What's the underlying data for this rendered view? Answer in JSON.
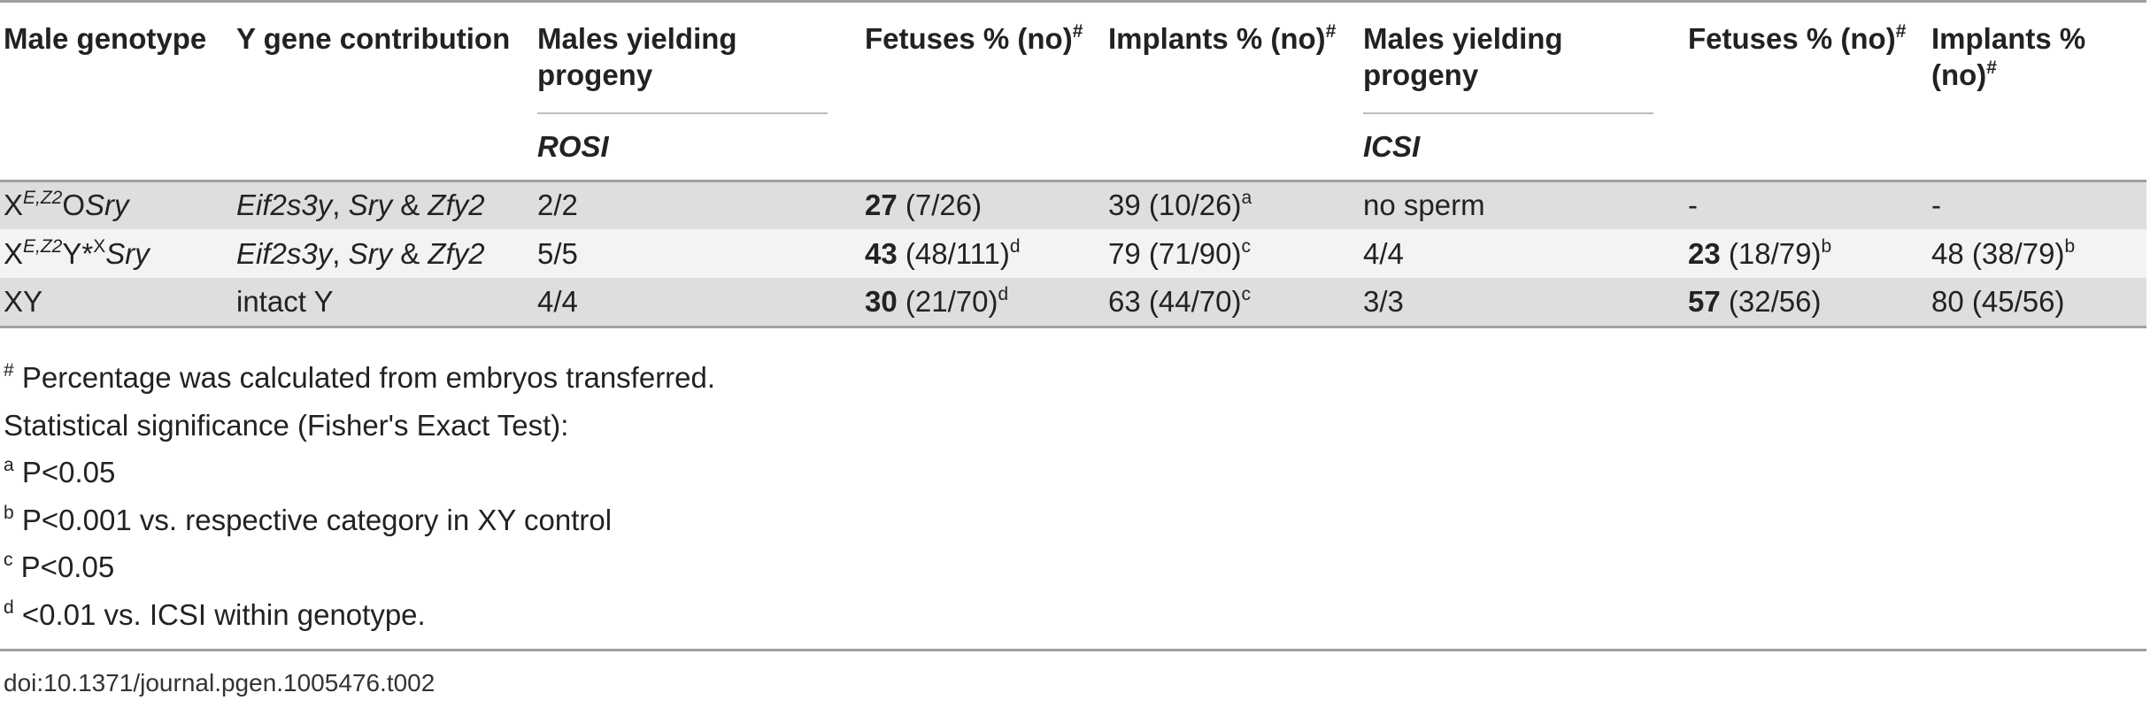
{
  "headers": {
    "male_genotype": "Male genotype",
    "y_gene_contribution": "Y gene contribution",
    "rosi_males_yielding_progeny": "Males yielding progeny",
    "rosi_fetuses": "Fetuses % (no)",
    "rosi_fetuses_mark": "#",
    "rosi_implants": "Implants % (no)",
    "rosi_implants_mark": "#",
    "icsi_males_yielding_progeny": "Males yielding progeny",
    "icsi_fetuses": "Fetuses % (no)",
    "icsi_fetuses_mark": "#",
    "icsi_implants": "Implants % (no)",
    "icsi_implants_mark": "#",
    "method_rosi": "ROSI",
    "method_icsi": "ICSI"
  },
  "rows": [
    {
      "genotype": {
        "base": "X",
        "sup": "E,Z2",
        "middle": "O",
        "trail": "Sry"
      },
      "y_genes": {
        "gene1": "Eif2s3y",
        "sep1": ", ",
        "gene2": "Sry",
        "sep2": " & ",
        "gene3": "Zfy2"
      },
      "rosi_males": "2/2",
      "rosi_fetuses_pct": "27",
      "rosi_fetuses_no": "(7/26)",
      "rosi_fetuses_mark": "",
      "rosi_implants": "39 (10/26)",
      "rosi_implants_mark": "a",
      "icsi_males": "no sperm",
      "icsi_fetuses_pct": "",
      "icsi_fetuses_no": "-",
      "icsi_fetuses_mark": "",
      "icsi_implants": "-",
      "icsi_implants_mark": ""
    },
    {
      "genotype": {
        "base": "X",
        "sup": "E,Z2",
        "middle": "Y*",
        "sup2": "X",
        "trail": "Sry"
      },
      "y_genes": {
        "gene1": "Eif2s3y",
        "sep1": ", ",
        "gene2": "Sry",
        "sep2": " & ",
        "gene3": "Zfy2"
      },
      "rosi_males": "5/5",
      "rosi_fetuses_pct": "43",
      "rosi_fetuses_no": "(48/111)",
      "rosi_fetuses_mark": "d",
      "rosi_implants": "79 (71/90)",
      "rosi_implants_mark": "c",
      "icsi_males": "4/4",
      "icsi_fetuses_pct": "23",
      "icsi_fetuses_no": "(18/79)",
      "icsi_fetuses_mark": "b",
      "icsi_implants": "48 (38/79)",
      "icsi_implants_mark": "b"
    },
    {
      "genotype": {
        "base": "XY"
      },
      "y_genes": {
        "text": "intact Y"
      },
      "rosi_males": "4/4",
      "rosi_fetuses_pct": "30",
      "rosi_fetuses_no": "(21/70)",
      "rosi_fetuses_mark": "d",
      "rosi_implants": "63 (44/70)",
      "rosi_implants_mark": "c",
      "icsi_males": "3/3",
      "icsi_fetuses_pct": "57",
      "icsi_fetuses_no": "(32/56)",
      "icsi_fetuses_mark": "",
      "icsi_implants": "80 (45/56)",
      "icsi_implants_mark": ""
    }
  ],
  "footnotes": [
    {
      "mark": "#",
      "text": "Percentage was calculated from embryos transferred."
    },
    {
      "mark": "",
      "text": "Statistical significance (Fisher's Exact Test):"
    },
    {
      "mark": "a",
      "text": "P<0.05"
    },
    {
      "mark": "b",
      "text": "P<0.001 vs. respective category in XY control"
    },
    {
      "mark": "c",
      "text": "P<0.05"
    },
    {
      "mark": "d",
      "text": "<0.01 vs. ICSI within genotype."
    }
  ],
  "doi": "doi:10.1371/journal.pgen.1005476.t002"
}
